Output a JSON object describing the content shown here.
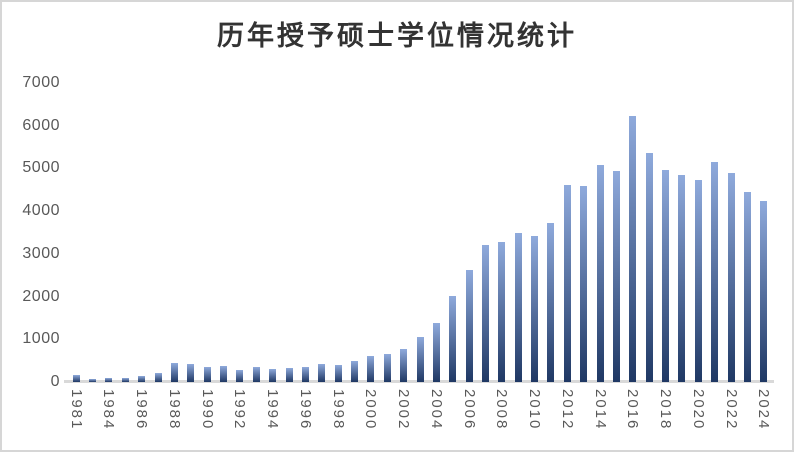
{
  "chart": {
    "title": "历年授予硕士学位情况统计"
  },
  "chart_data": {
    "type": "bar",
    "title": "历年授予硕士学位情况统计",
    "categories": [
      "1981",
      "1982",
      "1984",
      "1985",
      "1986",
      "1987",
      "1988",
      "1989",
      "1990",
      "1991",
      "1992",
      "1993",
      "1994",
      "1995",
      "1996",
      "1997",
      "1998",
      "1999",
      "2000",
      "2001",
      "2002",
      "2003",
      "2004",
      "2005",
      "2006",
      "2007",
      "2008",
      "2009",
      "2010",
      "2011",
      "2012",
      "2013",
      "2014",
      "2015",
      "2016",
      "2017",
      "2018",
      "2019",
      "2020",
      "2021",
      "2022",
      "2023",
      "2024"
    ],
    "values": [
      175,
      80,
      100,
      100,
      130,
      220,
      440,
      420,
      360,
      365,
      270,
      350,
      310,
      330,
      360,
      430,
      400,
      500,
      610,
      650,
      780,
      1050,
      1390,
      2010,
      2620,
      3210,
      3280,
      3490,
      3420,
      3720,
      4620,
      4600,
      5070,
      4950,
      6230,
      5360,
      4970,
      4850,
      4720,
      5150,
      4890,
      4450,
      4230
    ],
    "x_tick_labels_shown": [
      "1981",
      "1984",
      "1986",
      "1988",
      "1990",
      "1992",
      "1994",
      "1996",
      "1998",
      "2000",
      "2002",
      "2004",
      "2006",
      "2008",
      "2010",
      "2012",
      "2014",
      "2016",
      "2018",
      "2020",
      "2022",
      "2024"
    ],
    "x_label_interval": 2,
    "x_label_rotation_deg": 90,
    "y_ticks": [
      0,
      1000,
      2000,
      3000,
      4000,
      5000,
      6000,
      7000
    ],
    "ylim": [
      0,
      7000
    ],
    "xlabel": "",
    "ylabel": "",
    "grid": false,
    "legend": false,
    "colors": {
      "bar_gradient_top": "#8FAADC",
      "bar_gradient_bottom": "#1F3864",
      "axis_line": "#D9D9D9",
      "tick_label": "#595959",
      "title": "#333333",
      "background": "#FFFFFF"
    }
  }
}
